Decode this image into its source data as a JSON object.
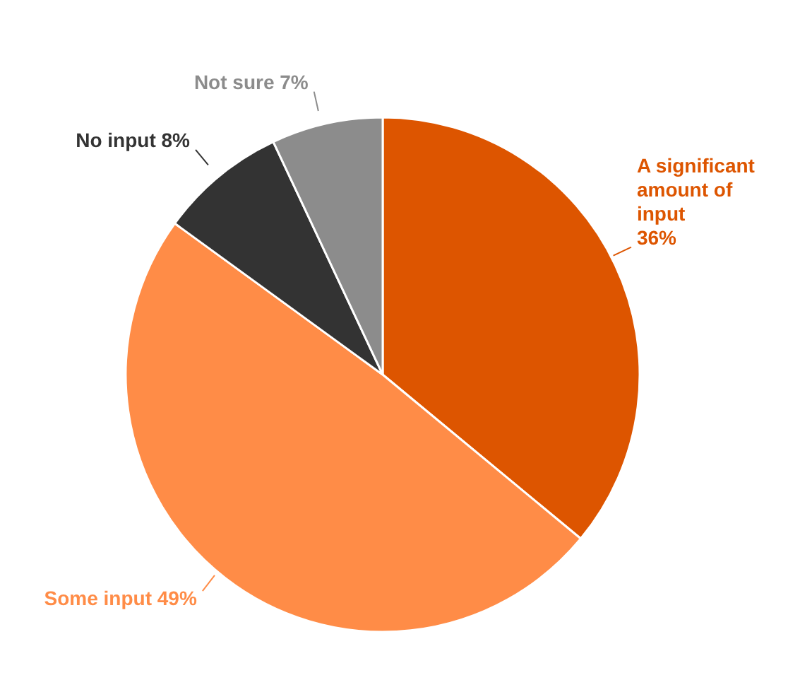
{
  "chart_data": {
    "type": "pie",
    "categories": [
      "A significant amount of input",
      "Some input",
      "No input",
      "Not sure"
    ],
    "values": [
      36,
      49,
      8,
      7
    ],
    "colors": [
      "#dd5500",
      "#ff8c47",
      "#333333",
      "#8c8c8c"
    ],
    "value_labels": [
      "36%",
      "49%",
      "8%",
      "7%"
    ],
    "legend": false
  }
}
